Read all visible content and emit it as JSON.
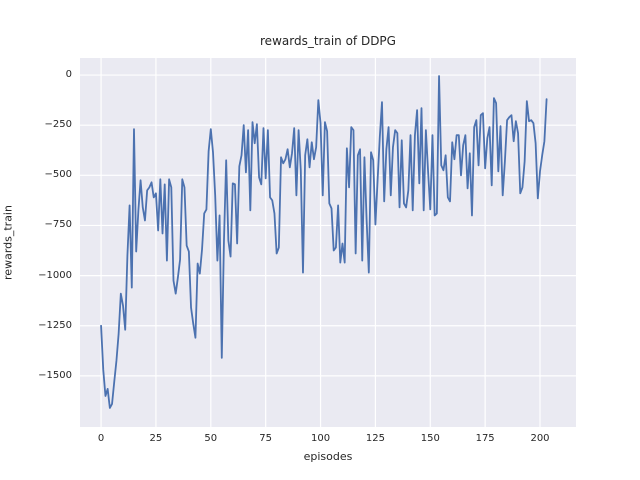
{
  "chart_data": {
    "type": "line",
    "title": "rewards_train of DDPG",
    "xlabel": "episodes",
    "ylabel": "rewards_train",
    "background_color": "#eaeaf2",
    "grid_color": "#ffffff",
    "text_color": "#262626",
    "grid": true,
    "legend": "none",
    "xlim": [
      -9.6,
      216.4
    ],
    "ylim": [
      -1755,
      85
    ],
    "x_ticks": [
      0,
      25,
      50,
      75,
      100,
      125,
      150,
      175,
      200
    ],
    "x_tick_labels": [
      "0",
      "25",
      "50",
      "75",
      "100",
      "125",
      "150",
      "175",
      "200"
    ],
    "y_ticks": [
      0,
      -250,
      -500,
      -750,
      -1000,
      -1250,
      -1500
    ],
    "y_tick_labels": [
      "0",
      "−250",
      "−500",
      "−750",
      "−1000",
      "−1250",
      "−1500"
    ],
    "series": [
      {
        "name": "rewards_train",
        "color": "#4c72b0",
        "line_width": 1.8,
        "x_start": 0,
        "x_step": 1,
        "y": [
          -1250,
          -1470,
          -1600,
          -1565,
          -1660,
          -1640,
          -1530,
          -1425,
          -1290,
          -1090,
          -1150,
          -1270,
          -900,
          -650,
          -1060,
          -270,
          -880,
          -675,
          -525,
          -660,
          -725,
          -575,
          -560,
          -535,
          -610,
          -590,
          -775,
          -520,
          -790,
          -545,
          -925,
          -520,
          -560,
          -1025,
          -1090,
          -1010,
          -920,
          -520,
          -560,
          -850,
          -880,
          -1160,
          -1240,
          -1310,
          -940,
          -990,
          -870,
          -690,
          -670,
          -380,
          -270,
          -385,
          -600,
          -925,
          -700,
          -1410,
          -825,
          -425,
          -825,
          -905,
          -540,
          -545,
          -840,
          -455,
          -400,
          -250,
          -485,
          -275,
          -675,
          -235,
          -340,
          -245,
          -510,
          -545,
          -265,
          -515,
          -275,
          -610,
          -625,
          -690,
          -890,
          -860,
          -410,
          -440,
          -420,
          -370,
          -460,
          -390,
          -265,
          -600,
          -275,
          -475,
          -985,
          -400,
          -320,
          -460,
          -335,
          -420,
          -360,
          -125,
          -240,
          -600,
          -235,
          -280,
          -640,
          -665,
          -875,
          -860,
          -650,
          -935,
          -840,
          -935,
          -365,
          -560,
          -260,
          -275,
          -890,
          -400,
          -370,
          -925,
          -410,
          -725,
          -985,
          -385,
          -425,
          -745,
          -525,
          -310,
          -135,
          -630,
          -370,
          -260,
          -600,
          -360,
          -275,
          -290,
          -660,
          -325,
          -640,
          -660,
          -575,
          -300,
          -675,
          -300,
          -175,
          -540,
          -165,
          -675,
          -275,
          -480,
          -670,
          -300,
          -700,
          -690,
          -5,
          -450,
          -475,
          -400,
          -610,
          -630,
          -335,
          -420,
          -300,
          -300,
          -500,
          -350,
          -300,
          -565,
          -390,
          -700,
          -260,
          -225,
          -450,
          -200,
          -190,
          -465,
          -315,
          -260,
          -550,
          -115,
          -140,
          -480,
          -255,
          -600,
          -430,
          -225,
          -210,
          -200,
          -330,
          -230,
          -290,
          -590,
          -560,
          -430,
          -130,
          -230,
          -225,
          -240,
          -340,
          -615,
          -480,
          -400,
          -330,
          -120
        ]
      }
    ]
  }
}
